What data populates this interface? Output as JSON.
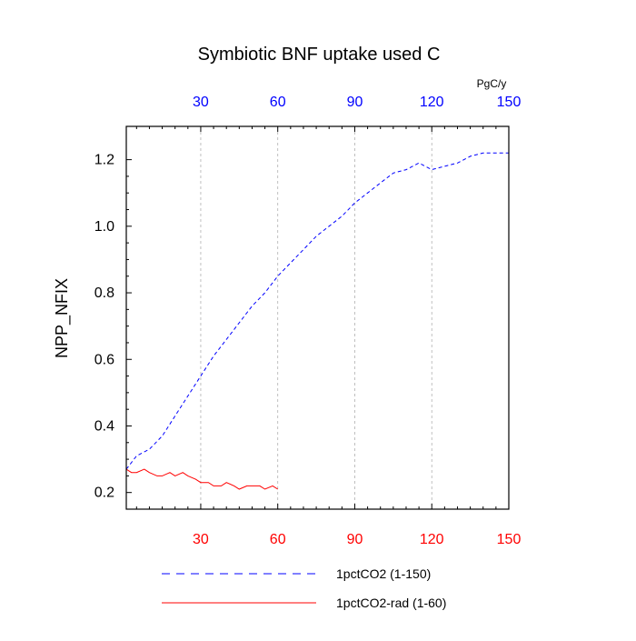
{
  "chart_data": {
    "type": "line",
    "title": "Symbiotic BNF uptake used C",
    "ylabel": "NPP_NFIX",
    "xlabel": "",
    "units": "PgC/y",
    "xlim": [
      1,
      150
    ],
    "ylim": [
      0.15,
      1.3
    ],
    "x_ticks": [
      30,
      60,
      90,
      120,
      150
    ],
    "y_ticks": [
      0.2,
      0.4,
      0.6,
      0.8,
      1.0,
      1.2
    ],
    "y_tick_labels": [
      "0.2",
      "0.4",
      "0.6",
      "0.8",
      "1.0",
      "1.2"
    ],
    "x_tick_colors": {
      "top": "#0000ff",
      "bottom": "#ff0000"
    },
    "gridlines": "vertical dashed at x ticks",
    "legend_placement": "bottom",
    "series": [
      {
        "name": "1pctCO2 (1-150)",
        "color": "#0000ff",
        "dash": "dashed",
        "x": [
          1,
          5,
          10,
          15,
          20,
          25,
          30,
          35,
          40,
          45,
          50,
          55,
          60,
          65,
          70,
          75,
          80,
          85,
          90,
          95,
          100,
          105,
          110,
          115,
          120,
          125,
          130,
          135,
          140,
          145,
          150
        ],
        "values": [
          0.27,
          0.31,
          0.33,
          0.37,
          0.43,
          0.49,
          0.55,
          0.61,
          0.66,
          0.71,
          0.76,
          0.8,
          0.85,
          0.89,
          0.93,
          0.97,
          1.0,
          1.03,
          1.07,
          1.1,
          1.13,
          1.16,
          1.17,
          1.19,
          1.17,
          1.18,
          1.19,
          1.21,
          1.22,
          1.22,
          1.22
        ]
      },
      {
        "name": "1pctCO2-rad (1-60)",
        "color": "#ff0000",
        "dash": "solid",
        "x": [
          1,
          3,
          5,
          8,
          10,
          13,
          15,
          18,
          20,
          23,
          25,
          28,
          30,
          33,
          35,
          38,
          40,
          43,
          45,
          48,
          50,
          53,
          55,
          58,
          60
        ],
        "values": [
          0.27,
          0.26,
          0.26,
          0.27,
          0.26,
          0.25,
          0.25,
          0.26,
          0.25,
          0.26,
          0.25,
          0.24,
          0.23,
          0.23,
          0.22,
          0.22,
          0.23,
          0.22,
          0.21,
          0.22,
          0.22,
          0.22,
          0.21,
          0.22,
          0.21
        ]
      }
    ]
  }
}
